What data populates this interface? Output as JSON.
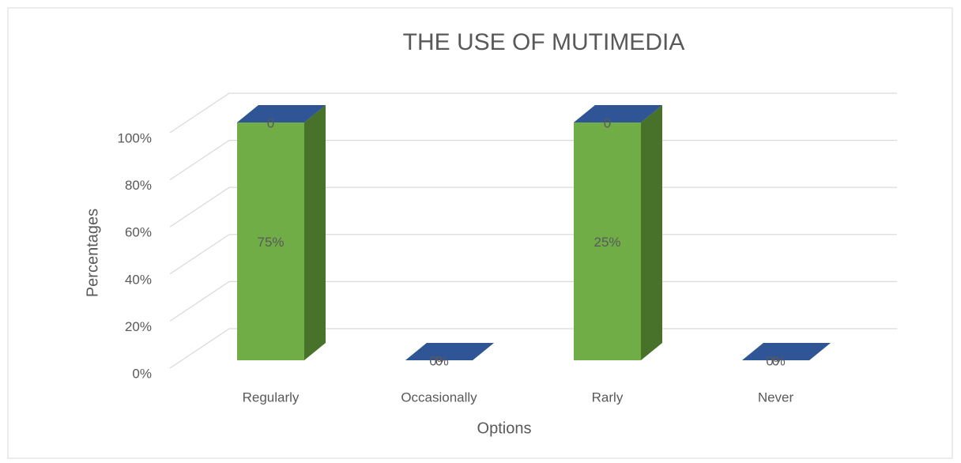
{
  "chart_data": {
    "type": "bar",
    "stacking": "percent",
    "title": "THE USE OF MUTIMEDIA",
    "x_label": "Options",
    "y_label": "Percentages",
    "categories": [
      "Regularly",
      "Occasionally",
      "Rarly",
      "Never"
    ],
    "series": [
      {
        "color": "#70ad47",
        "side_color": "#487229",
        "values": [
          75,
          0,
          25,
          0
        ],
        "value_labels": [
          "75%",
          "0%",
          "25%",
          "0%"
        ]
      },
      {
        "color": "#2f5597",
        "side_color": "#1f3864",
        "values": [
          0,
          0,
          0,
          0
        ]
      }
    ],
    "ylim": [
      0,
      100
    ],
    "yticks": [
      {
        "value": 0,
        "label": "0%"
      },
      {
        "value": 20,
        "label": "20%"
      },
      {
        "value": 40,
        "label": "40%"
      },
      {
        "value": 60,
        "label": "60%"
      },
      {
        "value": 80,
        "label": "80%"
      },
      {
        "value": 100,
        "label": "100%"
      }
    ],
    "grid": true
  }
}
